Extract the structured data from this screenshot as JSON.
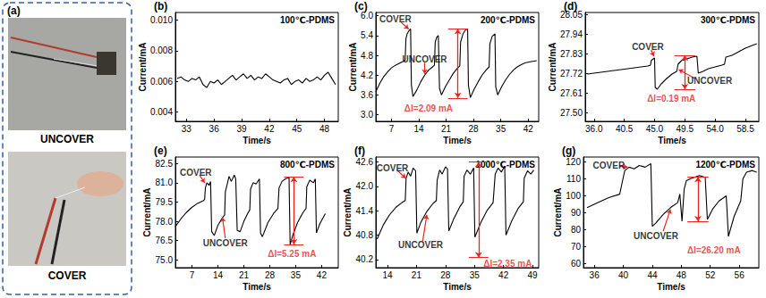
{
  "photo_panel": {
    "label": "(a)",
    "captions": [
      "UNCOVER",
      "COVER"
    ]
  },
  "chart_data": [
    {
      "type": "line",
      "panel": "(b)",
      "title": "100℃-PDMS",
      "x_label": "Time/s",
      "y_label": "Current/mA",
      "color": "#000000",
      "x": [
        32,
        32.4,
        32.8,
        33.2,
        33.6,
        34,
        34.4,
        34.8,
        35.2,
        35.6,
        36,
        36.4,
        36.8,
        37.2,
        37.6,
        38,
        38.4,
        38.8,
        39.2,
        39.6,
        40,
        40.4,
        40.8,
        41.2,
        41.6,
        42,
        42.4,
        42.8,
        43.2,
        43.6,
        44,
        44.4,
        44.8,
        45.2,
        45.6,
        46,
        46.4,
        46.8,
        47.2,
        47.6,
        48,
        48.4,
        48.8,
        49.2
      ],
      "values": [
        0.0062,
        0.0063,
        0.0061,
        0.006,
        0.0062,
        0.0061,
        0.0063,
        0.0058,
        0.0056,
        0.006,
        0.0059,
        0.0061,
        0.0058,
        0.006,
        0.0062,
        0.0064,
        0.0061,
        0.0063,
        0.0065,
        0.0062,
        0.0064,
        0.0061,
        0.0063,
        0.0062,
        0.0065,
        0.0063,
        0.0061,
        0.006,
        0.0059,
        0.0061,
        0.0062,
        0.0058,
        0.006,
        0.0061,
        0.0059,
        0.0062,
        0.006,
        0.0061,
        0.0063,
        0.0061,
        0.0064,
        0.0066,
        0.0062,
        0.0058
      ],
      "xlim": [
        31.8,
        49.5
      ],
      "xticks": [
        33,
        36,
        39,
        42,
        45,
        48
      ],
      "ylim": [
        0.0034,
        0.0105
      ],
      "yticks": [
        0.004,
        0.006,
        0.008,
        {
          "value": 0.01,
          "label": "0.010"
        }
      ],
      "annotations": []
    },
    {
      "type": "line",
      "panel": "(c)",
      "title": "200℃-PDMS",
      "x_label": "Time/s",
      "y_label": "Current/mA",
      "color": "#000000",
      "x": [
        3,
        4,
        5,
        6,
        7,
        8,
        9,
        10,
        10.5,
        10.7,
        11,
        11.5,
        11.9,
        12.1,
        12.5,
        13.5,
        14.5,
        15.5,
        16.5,
        17.5,
        18,
        18.2,
        18.6,
        19,
        19.3,
        19.8,
        20.8,
        21.8,
        22.8,
        23.8,
        24.5,
        24.7,
        25.3,
        26,
        26.5,
        26.7,
        27.2,
        28.2,
        29.2,
        30.2,
        31.2,
        32,
        32.2,
        32.8,
        33.5,
        33.7,
        34.2,
        35.2,
        36.2,
        37.2,
        38.2,
        39.2,
        40.2,
        41.2,
        42.2,
        43.2,
        44.2
      ],
      "values": [
        3.7,
        3.95,
        4.15,
        4.3,
        4.42,
        4.5,
        4.56,
        4.62,
        4.65,
        5.3,
        5.45,
        5.55,
        5.6,
        3.9,
        3.55,
        3.75,
        4.0,
        4.2,
        4.35,
        4.45,
        4.5,
        5.2,
        5.35,
        5.4,
        3.8,
        3.6,
        3.85,
        4.05,
        4.25,
        4.4,
        4.48,
        5.2,
        5.45,
        5.58,
        5.6,
        3.9,
        3.52,
        3.78,
        4.0,
        4.2,
        4.35,
        4.45,
        5.15,
        5.38,
        5.45,
        3.85,
        3.6,
        3.85,
        4.05,
        4.22,
        4.35,
        4.45,
        4.52,
        4.57,
        4.6,
        4.62,
        4.64
      ],
      "xlim": [
        3,
        44.7
      ],
      "xticks": [
        7,
        14,
        21,
        28,
        35,
        42
      ],
      "ylim": [
        2.8,
        6.1
      ],
      "yticks": [
        {
          "value": 3,
          "label": "3.0"
        },
        3.6,
        4.2,
        4.8,
        5.4,
        {
          "value": 6,
          "label": "6.0"
        }
      ],
      "annotations": [
        {
          "text": "COVER",
          "x": 8,
          "y": 5.9,
          "arrow": [
            [
              9.5,
              5.8
            ],
            [
              11.4,
              5.6
            ]
          ]
        },
        {
          "text": "UNCOVER",
          "x": 15.5,
          "y": 4.68,
          "arrow": [
            [
              15.5,
              4.58
            ],
            [
              15.5,
              4.24
            ]
          ]
        }
      ],
      "delta": {
        "text": "ΔI=2.09 mA",
        "x": 24,
        "low": 3.51,
        "high": 5.6,
        "text_x": 16.5,
        "text_y": 3.2
      }
    },
    {
      "type": "line",
      "panel": "(d)",
      "title": "300℃-PDMS",
      "x_label": "Time/s",
      "y_label": "Current/mA",
      "color": "#000000",
      "x": [
        35,
        36,
        37,
        38,
        39,
        40,
        41,
        42,
        43,
        44,
        44.4,
        44.5,
        44.8,
        45,
        45.1,
        45.4,
        46,
        46.8,
        47.6,
        48.3,
        48.5,
        49,
        49.8,
        50.6,
        51.3,
        51.5,
        52.2,
        53,
        54,
        55,
        55.4,
        55.6,
        56.5,
        57.5,
        58.5,
        59.5,
        60.2
      ],
      "values": [
        27.715,
        27.72,
        27.725,
        27.73,
        27.735,
        27.74,
        27.745,
        27.75,
        27.755,
        27.76,
        27.765,
        27.79,
        27.8,
        27.805,
        27.64,
        27.63,
        27.66,
        27.69,
        27.715,
        27.73,
        27.77,
        27.79,
        27.8,
        27.81,
        27.815,
        27.72,
        27.73,
        27.745,
        27.755,
        27.765,
        27.77,
        27.81,
        27.82,
        27.84,
        27.86,
        27.875,
        27.885
      ],
      "xlim": [
        34.7,
        60.5
      ],
      "xticks": [
        {
          "value": 36,
          "label": "36.0"
        },
        40.5,
        {
          "value": 45,
          "label": "45.0"
        },
        49.5,
        {
          "value": 54,
          "label": "54.0"
        },
        58.5
      ],
      "ylim": [
        27.45,
        28.06
      ],
      "yticks": [
        {
          "value": 27.5,
          "label": "27.50"
        },
        27.61,
        27.72,
        27.83,
        27.94,
        28.05
      ],
      "annotations": [
        {
          "text": "COVER",
          "x": 44,
          "y": 27.87,
          "arrow": [
            [
              44.5,
              27.85
            ],
            [
              44.9,
              27.815
            ]
          ]
        },
        {
          "text": "UNCOVER",
          "x": 53.2,
          "y": 27.68,
          "arrow": [
            [
              51,
              27.69
            ],
            [
              48.6,
              27.74
            ]
          ]
        }
      ],
      "delta": {
        "text": "ΔI=0.19 mA",
        "x": 49.5,
        "low": 27.63,
        "high": 27.82,
        "text_x": 47.5,
        "text_y": 27.58
      }
    },
    {
      "type": "line",
      "panel": "(e)",
      "title": "800℃-PDMS",
      "x_label": "Time/s",
      "y_label": "Current/mA",
      "color": "#000000",
      "x": [
        2.5,
        4,
        5.5,
        7,
        8.5,
        10,
        10.4,
        10.6,
        11,
        11.6,
        12,
        12.3,
        13,
        14,
        15,
        15.8,
        16,
        16.5,
        17,
        17.6,
        18.4,
        18.8,
        19.2,
        20,
        21,
        22,
        22.6,
        22.8,
        23.5,
        24.3,
        25.2,
        25.5,
        26,
        27.5,
        29,
        30.2,
        30.5,
        31.3,
        32.2,
        33.2,
        33.5,
        34.2,
        35.5,
        37,
        37.8,
        38,
        38.8,
        39.8,
        40.3,
        40.6,
        41.5,
        43
      ],
      "values": [
        77.6,
        78.2,
        78.7,
        79.1,
        79.4,
        79.6,
        79.7,
        80.6,
        81.0,
        80.8,
        81.1,
        77.2,
        76.9,
        77.7,
        78.2,
        78.5,
        80.3,
        80.9,
        81.5,
        81.1,
        81.6,
        81.3,
        77.3,
        77.2,
        78.0,
        78.6,
        78.9,
        80.5,
        81.0,
        80.9,
        81.3,
        77.1,
        76.8,
        77.9,
        78.6,
        79.0,
        80.6,
        81.1,
        81.3,
        81.4,
        76.2,
        76.9,
        77.9,
        78.7,
        79.0,
        80.7,
        81.2,
        81.0,
        81.3,
        77.1,
        77.8,
        78.6
      ],
      "xlim": [
        2.5,
        46.5
      ],
      "xticks": [
        7,
        14,
        21,
        28,
        35,
        42
      ],
      "ylim": [
        74.4,
        83
      ],
      "yticks": [
        {
          "value": 75,
          "label": "75.0"
        },
        76.5,
        {
          "value": 78,
          "label": "78.0"
        },
        79.5,
        {
          "value": 81,
          "label": "81.0"
        },
        82.5
      ],
      "annotations": [
        {
          "text": "COVER",
          "x": 8,
          "y": 81.8,
          "arrow": [
            [
              9,
              81.6
            ],
            [
              10.4,
              81.0
            ]
          ]
        },
        {
          "text": "UNCOVER",
          "x": 16,
          "y": 76.3,
          "arrow": [
            [
              16,
              76.7
            ],
            [
              15.2,
              78.3
            ]
          ]
        }
      ],
      "delta": {
        "text": "ΔI=5.25 mA",
        "x": 34.5,
        "low": 76.2,
        "high": 81.45,
        "text_x": 34,
        "text_y": 75.5
      }
    },
    {
      "type": "line",
      "panel": "(f)",
      "title": "1000℃-PDMS",
      "x_label": "Time/s",
      "y_label": "Current/mA",
      "color": "#000000",
      "x": [
        11.5,
        13,
        14.5,
        16,
        17.5,
        18.3,
        18.5,
        19,
        19.6,
        20.2,
        20.8,
        21.1,
        22,
        23.5,
        25,
        25.8,
        26,
        26.6,
        27.2,
        28,
        28.5,
        28.8,
        30,
        31.5,
        32.3,
        32.5,
        33.2,
        34,
        34.8,
        35.1,
        36.5,
        38,
        39.5,
        40,
        40.7,
        41.5,
        42.3,
        42.6,
        44,
        45.5,
        46.8,
        47,
        47.8,
        48.6,
        49.3
      ],
      "values": [
        40.7,
        41.05,
        41.3,
        41.48,
        41.6,
        41.65,
        42.2,
        42.35,
        42.25,
        42.45,
        42.38,
        40.85,
        41.1,
        41.38,
        41.58,
        41.65,
        42.15,
        42.4,
        42.3,
        42.48,
        42.42,
        40.9,
        41.2,
        41.5,
        41.62,
        42.25,
        42.4,
        42.3,
        42.45,
        40.75,
        41.1,
        41.4,
        41.6,
        42.3,
        42.45,
        42.35,
        42.5,
        40.8,
        41.15,
        41.45,
        41.62,
        42.2,
        42.38,
        42.3,
        42.4
      ],
      "xlim": [
        11.2,
        50.5
      ],
      "xticks": [
        14,
        21,
        28,
        35,
        42,
        49
      ],
      "ylim": [
        40,
        42.72
      ],
      "yticks": [
        40.2,
        40.8,
        41.4,
        {
          "value": 42,
          "label": "42.0"
        },
        42.6
      ],
      "annotations": [
        {
          "text": "COVER",
          "x": 15.2,
          "y": 42.45,
          "arrow": [
            [
              16.5,
              42.38
            ],
            [
              18.4,
              42.2
            ]
          ]
        },
        {
          "text": "UNCOVER",
          "x": 22,
          "y": 40.55,
          "arrow": [
            [
              22.5,
              40.65
            ],
            [
              23.5,
              41.3
            ]
          ]
        }
      ],
      "delta": {
        "text": "ΔI=2.35 mA",
        "x": 36,
        "low": 40.25,
        "high": 42.6,
        "text_x": 43,
        "text_y": 40.1
      }
    },
    {
      "type": "line",
      "panel": "(g)",
      "title": "1200℃-PDMS",
      "x_label": "Time/s",
      "y_label": "Current/mA",
      "color": "#000000",
      "x": [
        35,
        36.5,
        38,
        39.5,
        39.9,
        40.2,
        40.8,
        41.5,
        42.2,
        43,
        43.8,
        44,
        44.5,
        45.5,
        46.5,
        47.5,
        47.8,
        48.1,
        48.4,
        48.7,
        49.2,
        49.8,
        50.5,
        51.3,
        51.6,
        52.3,
        53.2,
        54.2,
        54.5,
        55.3,
        56.2,
        56.5,
        57,
        57.8,
        58.4
      ],
      "values": [
        93,
        96,
        99,
        101,
        109,
        115,
        117,
        116,
        118,
        117,
        119,
        82,
        84,
        89,
        93,
        96,
        101,
        85,
        104,
        109,
        110,
        111,
        112,
        111,
        86,
        92,
        97,
        100,
        76,
        88,
        97,
        110,
        114,
        115,
        114
      ],
      "xlim": [
        34.5,
        58.7
      ],
      "xticks": [
        36,
        40,
        44,
        48,
        52,
        56
      ],
      "ylim": [
        57.5,
        123
      ],
      "yticks": [
        60,
        70,
        80,
        90,
        100,
        110,
        120
      ],
      "annotations": [
        {
          "text": "COVER",
          "x": 38,
          "y": 118,
          "arrow": [
            [
              39.5,
              117.5
            ],
            [
              40.6,
              117
            ]
          ]
        },
        {
          "text": "UNCOVER",
          "x": 44.5,
          "y": 76,
          "arrow": [
            [
              45.5,
              79
            ],
            [
              46.5,
              92
            ]
          ]
        }
      ],
      "delta": {
        "text": "ΔI=26.20 mA",
        "x": 50.3,
        "low": 85,
        "high": 111.2,
        "text_x": 52.5,
        "text_y": 68
      }
    }
  ]
}
